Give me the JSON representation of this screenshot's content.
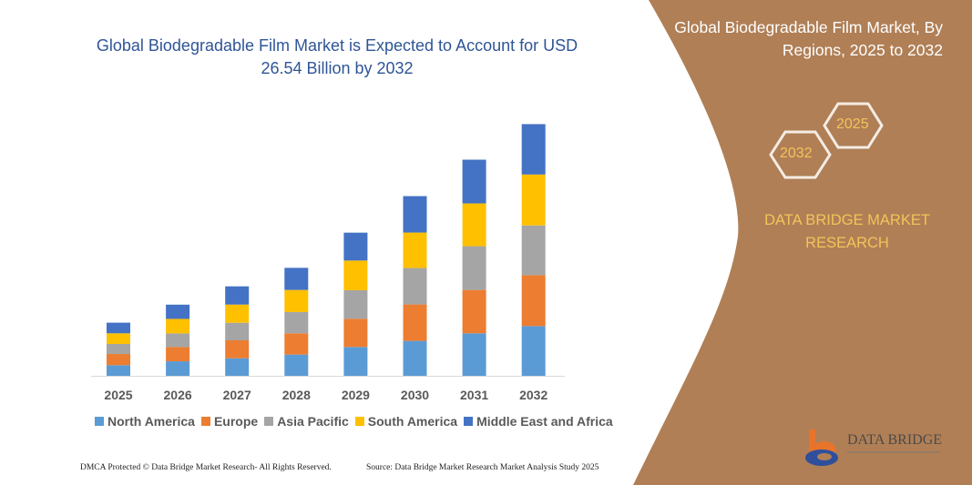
{
  "title": "Global Biodegradable Film Market is Expected to Account for USD 26.54 Billion by 2032",
  "panel": {
    "title": "Global Biodegradable Film Market, By Regions, 2025 to 2032",
    "hex_left": "2032",
    "hex_right": "2025",
    "brand": "DATA BRIDGE MARKET RESEARCH",
    "logo_text": "DATA BRIDGE",
    "background_color": "#b07f56"
  },
  "footer": {
    "left": "DMCA Protected © Data Bridge Market Research-  All Rights Reserved.",
    "right": "Source: Data Bridge Market Research  Market Analysis Study 2025"
  },
  "chart_data": {
    "type": "bar",
    "stacked": true,
    "title": "Global Biodegradable Film Market is Expected to Account for USD 26.54 Billion by 2032",
    "xlabel": "",
    "ylabel": "",
    "y_axis_visible": false,
    "grid": false,
    "legend_position": "bottom",
    "categories": [
      "2025",
      "2026",
      "2027",
      "2028",
      "2029",
      "2030",
      "2031",
      "2032"
    ],
    "series": [
      {
        "name": "North America",
        "color": "#5b9bd5",
        "values": [
          1.12,
          1.53,
          1.85,
          2.24,
          3.04,
          3.68,
          4.48,
          5.24
        ]
      },
      {
        "name": "Europe",
        "color": "#ed7d31",
        "values": [
          1.18,
          1.5,
          1.89,
          2.24,
          2.97,
          3.84,
          4.57,
          5.37
        ]
      },
      {
        "name": "Asia Pacific",
        "color": "#a5a5a5",
        "values": [
          1.06,
          1.44,
          1.85,
          2.24,
          3.01,
          3.84,
          4.61,
          5.24
        ]
      },
      {
        "name": "South America",
        "color": "#ffc000",
        "values": [
          1.12,
          1.53,
          1.92,
          2.33,
          3.13,
          3.74,
          4.51,
          5.37
        ]
      },
      {
        "name": "Middle East and Africa",
        "color": "#4472c4",
        "values": [
          1.12,
          1.5,
          1.92,
          2.33,
          2.94,
          3.84,
          4.61,
          5.31
        ]
      }
    ]
  }
}
